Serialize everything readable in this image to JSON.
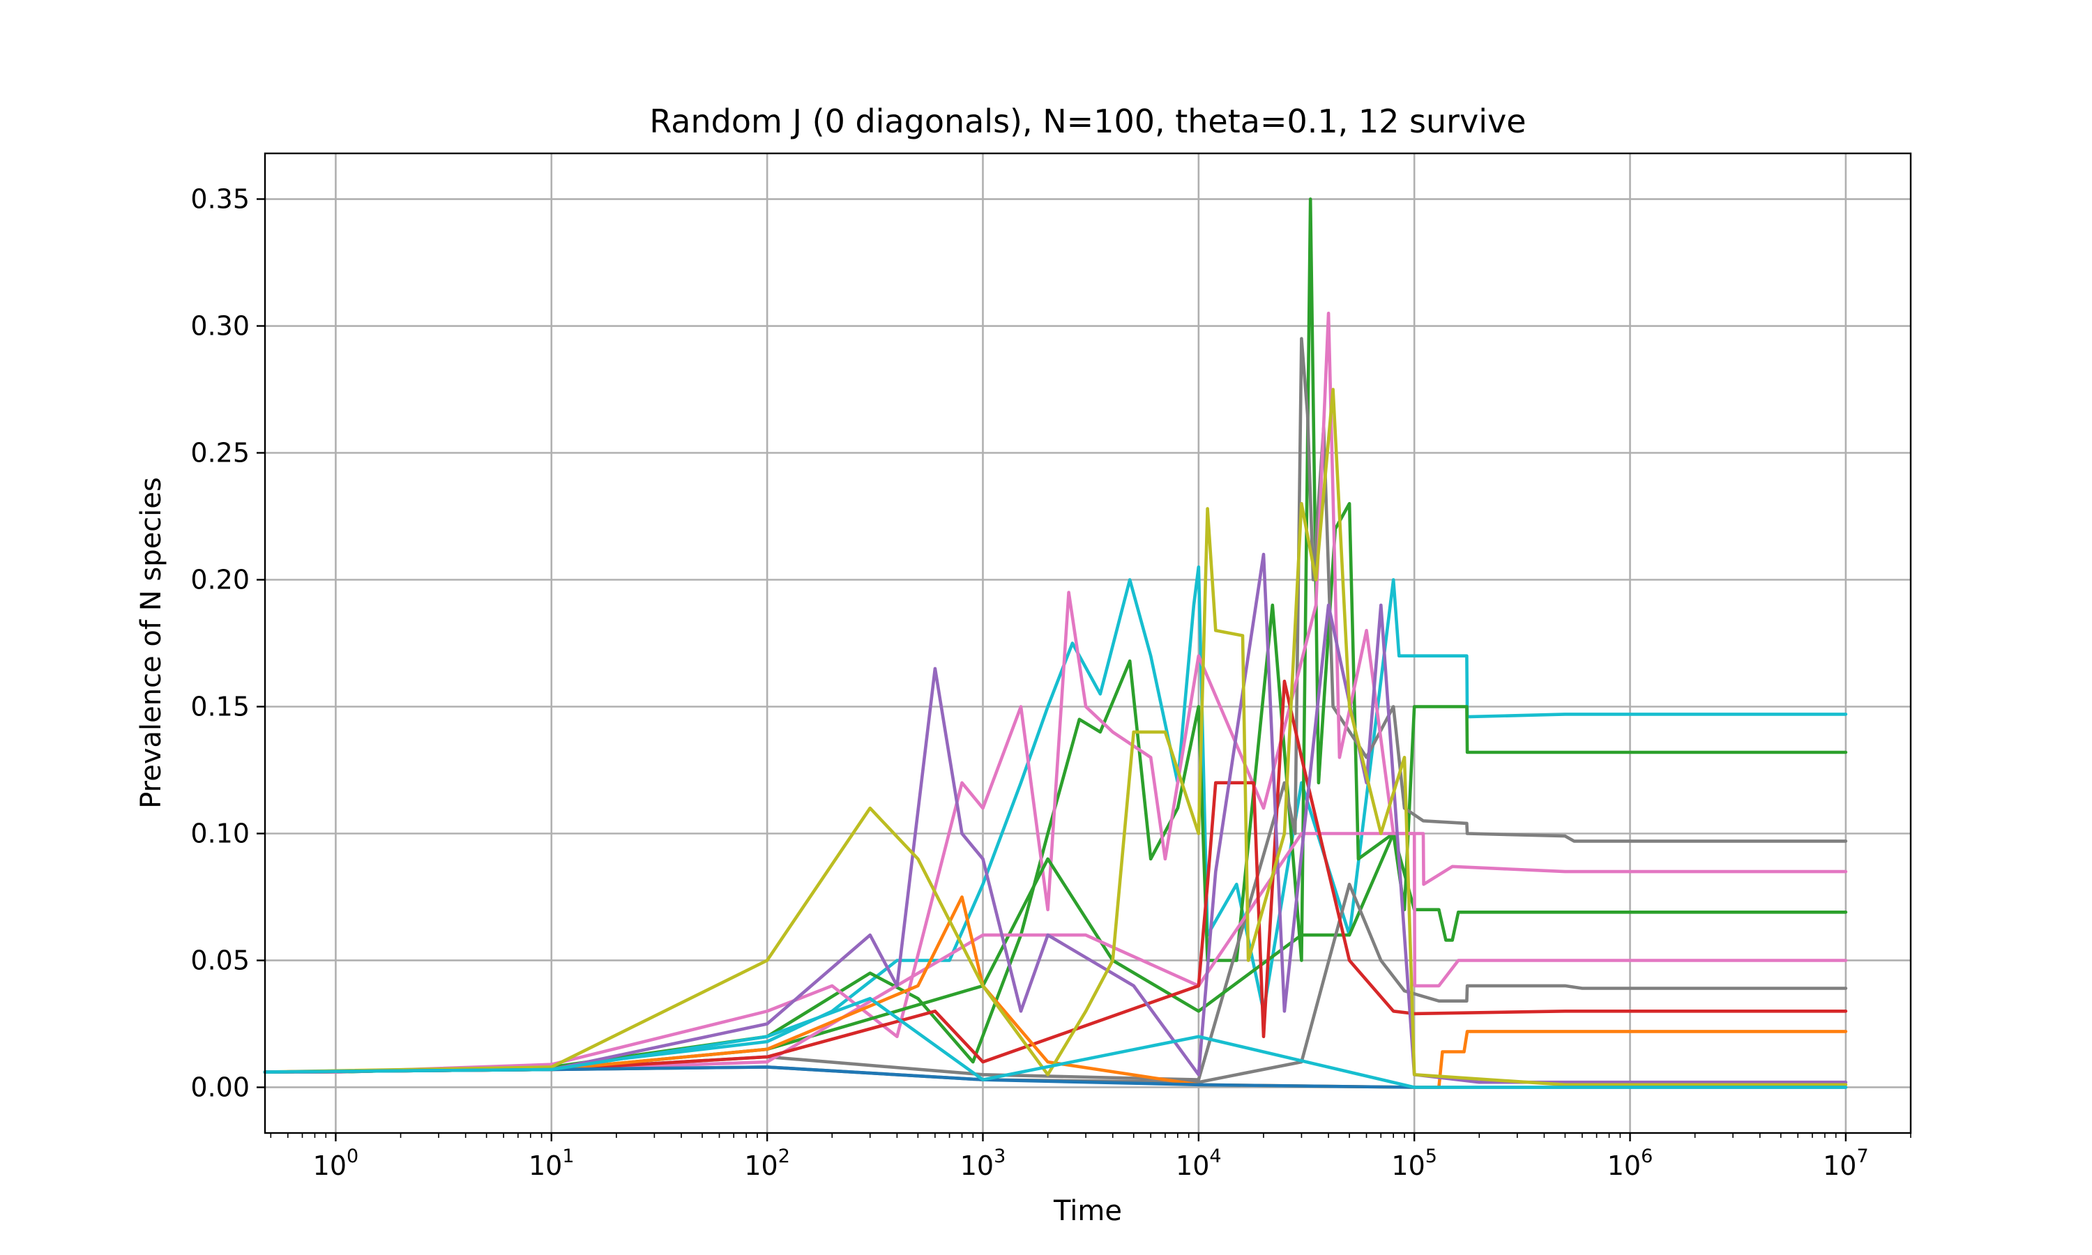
{
  "chart_data": {
    "type": "line",
    "title": "Random J (0 diagonals), N=100, theta=0.1, 12 survive",
    "xlabel": "Time",
    "ylabel": "Prevalence of N species",
    "xscale": "log",
    "xlim": [
      0.47,
      20000000
    ],
    "ylim": [
      -0.018,
      0.368
    ],
    "xticks": [
      {
        "value": 1,
        "base": "10",
        "exp": "0"
      },
      {
        "value": 10,
        "base": "10",
        "exp": "1"
      },
      {
        "value": 100,
        "base": "10",
        "exp": "2"
      },
      {
        "value": 1000,
        "base": "10",
        "exp": "3"
      },
      {
        "value": 10000,
        "base": "10",
        "exp": "4"
      },
      {
        "value": 100000,
        "base": "10",
        "exp": "5"
      },
      {
        "value": 1000000,
        "base": "10",
        "exp": "6"
      },
      {
        "value": 10000000,
        "base": "10",
        "exp": "7"
      }
    ],
    "yticks": [
      {
        "value": 0.0,
        "label": "0.00"
      },
      {
        "value": 0.05,
        "label": "0.05"
      },
      {
        "value": 0.1,
        "label": "0.10"
      },
      {
        "value": 0.15,
        "label": "0.15"
      },
      {
        "value": 0.2,
        "label": "0.20"
      },
      {
        "value": 0.25,
        "label": "0.25"
      },
      {
        "value": 0.3,
        "label": "0.30"
      },
      {
        "value": 0.35,
        "label": "0.35"
      }
    ],
    "grid": true,
    "legend": "none",
    "series": [
      {
        "color": "#17becf",
        "points": [
          [
            0.47,
            0.006
          ],
          [
            1,
            0.006
          ],
          [
            10,
            0.008
          ],
          [
            100,
            0.018
          ],
          [
            200,
            0.03
          ],
          [
            400,
            0.05
          ],
          [
            700,
            0.05
          ],
          [
            1000,
            0.08
          ],
          [
            1500,
            0.12
          ],
          [
            2000,
            0.15
          ],
          [
            2600,
            0.175
          ],
          [
            3500,
            0.155
          ],
          [
            4800,
            0.2
          ],
          [
            6000,
            0.17
          ],
          [
            8000,
            0.12
          ],
          [
            9500,
            0.19
          ],
          [
            10000,
            0.205
          ],
          [
            11000,
            0.06
          ],
          [
            15000,
            0.08
          ],
          [
            20000,
            0.03
          ],
          [
            30000,
            0.12
          ],
          [
            50000,
            0.06
          ],
          [
            80000,
            0.2
          ],
          [
            85000,
            0.17
          ],
          [
            120000,
            0.17
          ],
          [
            175000,
            0.17
          ],
          [
            176000,
            0.146
          ],
          [
            500000,
            0.147
          ],
          [
            10000000,
            0.147
          ]
        ]
      },
      {
        "color": "#2ca02c",
        "points": [
          [
            0.47,
            0.006
          ],
          [
            1,
            0.006
          ],
          [
            10,
            0.008
          ],
          [
            100,
            0.02
          ],
          [
            300,
            0.045
          ],
          [
            500,
            0.035
          ],
          [
            900,
            0.01
          ],
          [
            1500,
            0.06
          ],
          [
            2000,
            0.1
          ],
          [
            2800,
            0.145
          ],
          [
            3500,
            0.14
          ],
          [
            4800,
            0.168
          ],
          [
            6000,
            0.09
          ],
          [
            8000,
            0.11
          ],
          [
            10000,
            0.15
          ],
          [
            11000,
            0.05
          ],
          [
            15000,
            0.05
          ],
          [
            22000,
            0.19
          ],
          [
            30000,
            0.05
          ],
          [
            33000,
            0.35
          ],
          [
            36000,
            0.12
          ],
          [
            43000,
            0.22
          ],
          [
            50000,
            0.23
          ],
          [
            55000,
            0.09
          ],
          [
            80000,
            0.1
          ],
          [
            90000,
            0.07
          ],
          [
            100000,
            0.15
          ],
          [
            175000,
            0.15
          ],
          [
            176000,
            0.132
          ],
          [
            500000,
            0.132
          ],
          [
            10000000,
            0.132
          ]
        ]
      },
      {
        "color": "#7f7f7f",
        "points": [
          [
            0.47,
            0.006
          ],
          [
            10,
            0.007
          ],
          [
            100,
            0.012
          ],
          [
            1000,
            0.005
          ],
          [
            10000,
            0.003
          ],
          [
            25000,
            0.12
          ],
          [
            28000,
            0.1
          ],
          [
            30000,
            0.295
          ],
          [
            32000,
            0.265
          ],
          [
            34000,
            0.2
          ],
          [
            38000,
            0.26
          ],
          [
            42000,
            0.15
          ],
          [
            60000,
            0.13
          ],
          [
            80000,
            0.15
          ],
          [
            90000,
            0.11
          ],
          [
            110000,
            0.105
          ],
          [
            175000,
            0.104
          ],
          [
            176000,
            0.1
          ],
          [
            500000,
            0.099
          ],
          [
            550000,
            0.097
          ],
          [
            10000000,
            0.097
          ]
        ]
      },
      {
        "color": "#e377c2",
        "points": [
          [
            0.47,
            0.006
          ],
          [
            1,
            0.006
          ],
          [
            10,
            0.009
          ],
          [
            100,
            0.03
          ],
          [
            200,
            0.04
          ],
          [
            400,
            0.02
          ],
          [
            800,
            0.12
          ],
          [
            1000,
            0.11
          ],
          [
            1500,
            0.15
          ],
          [
            2000,
            0.07
          ],
          [
            2500,
            0.195
          ],
          [
            3000,
            0.15
          ],
          [
            4000,
            0.14
          ],
          [
            6000,
            0.13
          ],
          [
            7000,
            0.09
          ],
          [
            10000,
            0.17
          ],
          [
            20000,
            0.11
          ],
          [
            35000,
            0.19
          ],
          [
            40000,
            0.305
          ],
          [
            45000,
            0.13
          ],
          [
            60000,
            0.18
          ],
          [
            80000,
            0.1
          ],
          [
            110000,
            0.1
          ],
          [
            110500,
            0.08
          ],
          [
            150000,
            0.087
          ],
          [
            500000,
            0.085
          ],
          [
            10000000,
            0.085
          ]
        ]
      },
      {
        "color": "#2ca02c",
        "points": [
          [
            0.47,
            0.006
          ],
          [
            10,
            0.007
          ],
          [
            100,
            0.015
          ],
          [
            1000,
            0.04
          ],
          [
            2000,
            0.09
          ],
          [
            4000,
            0.05
          ],
          [
            10000,
            0.03
          ],
          [
            30000,
            0.06
          ],
          [
            50000,
            0.06
          ],
          [
            80000,
            0.1
          ],
          [
            100000,
            0.07
          ],
          [
            130000,
            0.07
          ],
          [
            140000,
            0.058
          ],
          [
            150000,
            0.058
          ],
          [
            160000,
            0.069
          ],
          [
            500000,
            0.069
          ],
          [
            10000000,
            0.069
          ]
        ]
      },
      {
        "color": "#e377c2",
        "points": [
          [
            0.47,
            0.006
          ],
          [
            10,
            0.007
          ],
          [
            100,
            0.01
          ],
          [
            1000,
            0.06
          ],
          [
            3000,
            0.06
          ],
          [
            10000,
            0.04
          ],
          [
            30000,
            0.1
          ],
          [
            60000,
            0.1
          ],
          [
            100000,
            0.1
          ],
          [
            100500,
            0.04
          ],
          [
            120000,
            0.04
          ],
          [
            130000,
            0.04
          ],
          [
            160000,
            0.05
          ],
          [
            500000,
            0.05
          ],
          [
            10000000,
            0.05
          ]
        ]
      },
      {
        "color": "#7f7f7f",
        "points": [
          [
            0.47,
            0.006
          ],
          [
            10,
            0.007
          ],
          [
            100,
            0.008
          ],
          [
            1000,
            0.003
          ],
          [
            10000,
            0.002
          ],
          [
            30000,
            0.01
          ],
          [
            50000,
            0.08
          ],
          [
            70000,
            0.05
          ],
          [
            90000,
            0.038
          ],
          [
            130000,
            0.034
          ],
          [
            175000,
            0.034
          ],
          [
            176000,
            0.04
          ],
          [
            500000,
            0.04
          ],
          [
            600000,
            0.039
          ],
          [
            10000000,
            0.039
          ]
        ]
      },
      {
        "color": "#d62728",
        "points": [
          [
            0.47,
            0.006
          ],
          [
            10,
            0.007
          ],
          [
            100,
            0.012
          ],
          [
            600,
            0.03
          ],
          [
            1000,
            0.01
          ],
          [
            10000,
            0.04
          ],
          [
            11000,
            0.08
          ],
          [
            12000,
            0.12
          ],
          [
            18000,
            0.12
          ],
          [
            20000,
            0.02
          ],
          [
            25000,
            0.16
          ],
          [
            30000,
            0.13
          ],
          [
            50000,
            0.05
          ],
          [
            80000,
            0.03
          ],
          [
            100000,
            0.029
          ],
          [
            500000,
            0.03
          ],
          [
            10000000,
            0.03
          ]
        ]
      },
      {
        "color": "#ff7f0e",
        "points": [
          [
            0.47,
            0.006
          ],
          [
            10,
            0.007
          ],
          [
            100,
            0.015
          ],
          [
            500,
            0.04
          ],
          [
            800,
            0.075
          ],
          [
            1000,
            0.04
          ],
          [
            2000,
            0.01
          ],
          [
            10000,
            0.001
          ],
          [
            100000,
            0
          ],
          [
            130000,
            0
          ],
          [
            135000,
            0.014
          ],
          [
            170000,
            0.014
          ],
          [
            176000,
            0.022
          ],
          [
            500000,
            0.022
          ],
          [
            10000000,
            0.022
          ]
        ]
      },
      {
        "color": "#9467bd",
        "points": [
          [
            0.47,
            0.006
          ],
          [
            10,
            0.007
          ],
          [
            100,
            0.025
          ],
          [
            300,
            0.06
          ],
          [
            400,
            0.04
          ],
          [
            600,
            0.165
          ],
          [
            800,
            0.1
          ],
          [
            1000,
            0.09
          ],
          [
            1500,
            0.03
          ],
          [
            2000,
            0.06
          ],
          [
            5000,
            0.04
          ],
          [
            10000,
            0.005
          ],
          [
            12000,
            0.085
          ],
          [
            20000,
            0.21
          ],
          [
            25000,
            0.03
          ],
          [
            40000,
            0.19
          ],
          [
            60000,
            0.12
          ],
          [
            70000,
            0.19
          ],
          [
            100000,
            0.005
          ],
          [
            200000,
            0.002
          ],
          [
            500000,
            0.002
          ],
          [
            10000000,
            0.002
          ]
        ]
      },
      {
        "color": "#bcbd22",
        "points": [
          [
            0.47,
            0.006
          ],
          [
            10,
            0.008
          ],
          [
            100,
            0.05
          ],
          [
            300,
            0.11
          ],
          [
            500,
            0.09
          ],
          [
            1000,
            0.04
          ],
          [
            2000,
            0.005
          ],
          [
            3000,
            0.03
          ],
          [
            4000,
            0.05
          ],
          [
            5000,
            0.14
          ],
          [
            7000,
            0.14
          ],
          [
            10000,
            0.1
          ],
          [
            11000,
            0.228
          ],
          [
            12000,
            0.18
          ],
          [
            16000,
            0.178
          ],
          [
            17000,
            0.05
          ],
          [
            25000,
            0.1
          ],
          [
            30000,
            0.23
          ],
          [
            35000,
            0.2
          ],
          [
            42000,
            0.275
          ],
          [
            50000,
            0.15
          ],
          [
            70000,
            0.1
          ],
          [
            90000,
            0.13
          ],
          [
            100000,
            0.005
          ],
          [
            500000,
            0.001
          ],
          [
            10000000,
            0.001
          ]
        ]
      },
      {
        "color": "#1f77b4",
        "points": [
          [
            0.47,
            0.006
          ],
          [
            10,
            0.007
          ],
          [
            100,
            0.008
          ],
          [
            1000,
            0.003
          ],
          [
            10000,
            0.001
          ],
          [
            100000,
            0
          ],
          [
            10000000,
            0
          ]
        ]
      },
      {
        "color": "#17becf",
        "points": [
          [
            0.47,
            0.006
          ],
          [
            10,
            0.007
          ],
          [
            100,
            0.02
          ],
          [
            300,
            0.035
          ],
          [
            1000,
            0.003
          ],
          [
            10000,
            0.02
          ],
          [
            100000,
            0
          ],
          [
            10000000,
            0
          ]
        ]
      }
    ]
  }
}
